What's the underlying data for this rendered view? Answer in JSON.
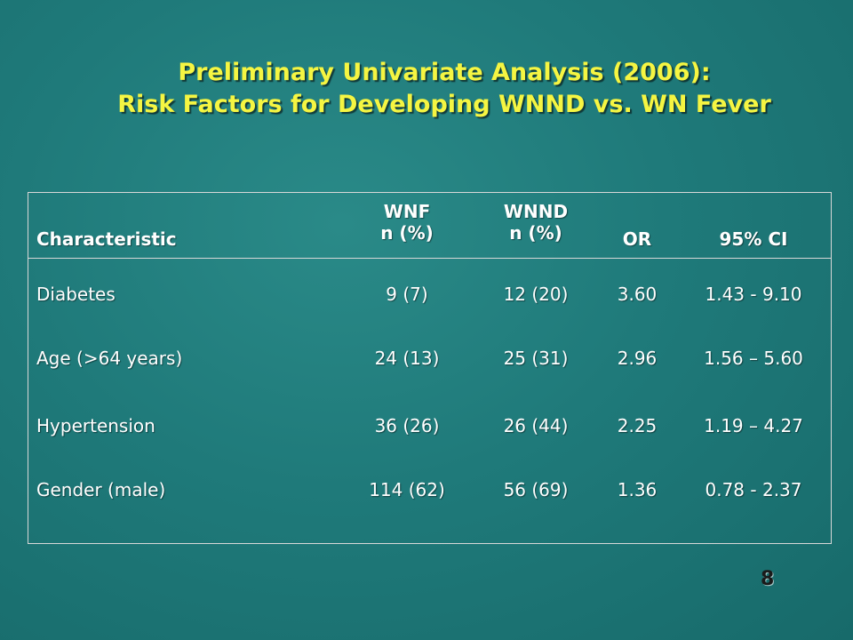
{
  "slide": {
    "title_line1": "Preliminary Univariate Analysis (2006):",
    "title_line2": "Risk Factors for Developing WNND vs. WN Fever",
    "page_number": "8",
    "colors": {
      "background": "#1f7a7a",
      "title": "#f5f542",
      "text": "#ffffff",
      "border": "#d8d8d8"
    }
  },
  "table": {
    "headers": {
      "characteristic": "Characteristic",
      "wnf_line1": "WNF",
      "wnf_line2": "n (%)",
      "wnnd_line1": "WNND",
      "wnnd_line2": "n (%)",
      "or": "OR",
      "ci": "95% CI"
    },
    "rows": [
      {
        "characteristic": "Diabetes",
        "wnf": "9 (7)",
        "wnnd": "12 (20)",
        "or": "3.60",
        "ci": "1.43 - 9.10"
      },
      {
        "characteristic": "Age (>64 years)",
        "wnf": "24 (13)",
        "wnnd": "25 (31)",
        "or": "2.96",
        "ci": "1.56 – 5.60"
      },
      {
        "characteristic": "Hypertension",
        "wnf": "36 (26)",
        "wnnd": "26 (44)",
        "or": "2.25",
        "ci": "1.19 – 4.27"
      },
      {
        "characteristic": "Gender (male)",
        "wnf": "114 (62)",
        "wnnd": "56 (69)",
        "or": "1.36",
        "ci": "0.78 - 2.37"
      }
    ]
  }
}
